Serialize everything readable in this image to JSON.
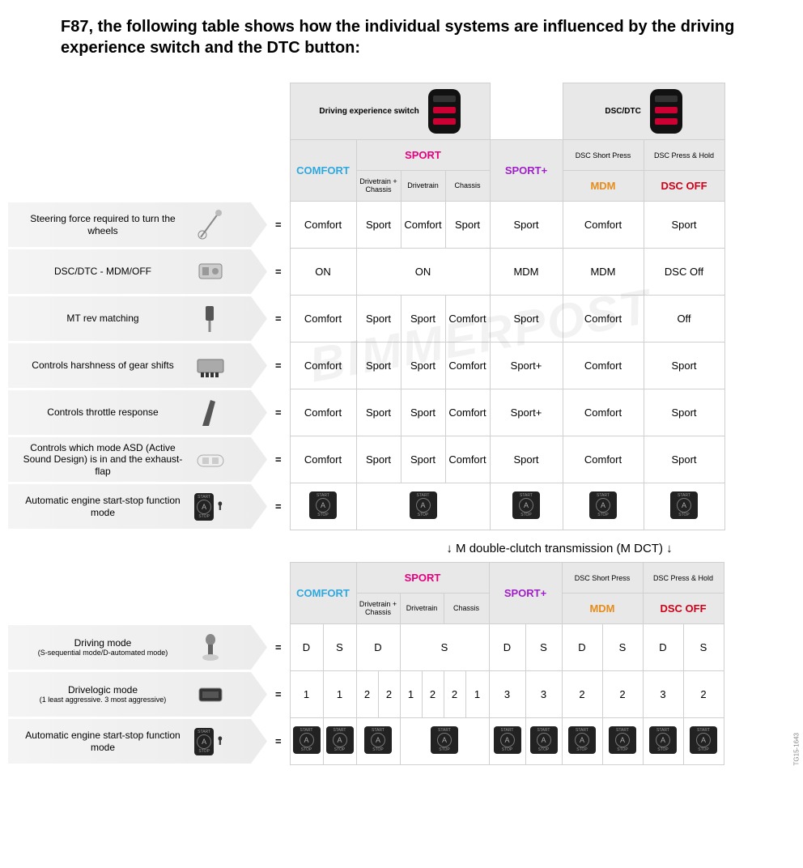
{
  "title": "F87, the following table shows how the individual systems are influenced by the driving experience switch and the DTC button:",
  "header": {
    "driving_switch": "Driving experience switch",
    "dsc_dtc": "DSC/DTC",
    "comfort": "COMFORT",
    "sport": "SPORT",
    "sportplus": "SPORT+",
    "dsc_short": "DSC Short Press",
    "dsc_hold": "DSC Press & Hold",
    "mdm": "MDM",
    "dscoff": "DSC OFF",
    "sub_drivetrain_chassis": "Drivetrain + Chassis",
    "sub_drivetrain": "Drivetrain",
    "sub_chassis": "Chassis"
  },
  "rows1": [
    {
      "label": "Steering force required to turn the wheels",
      "icon": "steering",
      "cells": [
        "Comfort",
        "Sport",
        "Comfort",
        "Sport",
        "Sport",
        "Comfort",
        "Sport"
      ]
    },
    {
      "label": "DSC/DTC - MDM/OFF",
      "icon": "dsc",
      "cells": [
        "ON",
        "ON",
        "",
        "",
        "MDM",
        "MDM",
        "DSC Off"
      ],
      "merge_sport": true
    },
    {
      "label": "MT rev matching",
      "icon": "pedal",
      "cells": [
        "Comfort",
        "Sport",
        "Sport",
        "Comfort",
        "Sport",
        "Comfort",
        "Off"
      ]
    },
    {
      "label": "Controls harshness of gear shifts",
      "icon": "ecu",
      "cells": [
        "Comfort",
        "Sport",
        "Sport",
        "Comfort",
        "Sport+",
        "Comfort",
        "Sport"
      ]
    },
    {
      "label": "Controls throttle response",
      "icon": "throttle",
      "cells": [
        "Comfort",
        "Sport",
        "Sport",
        "Comfort",
        "Sport+",
        "Comfort",
        "Sport"
      ]
    },
    {
      "label": "Controls which mode ASD (Active Sound Design) is in and the exhaust-flap",
      "icon": "car",
      "cells": [
        "Comfort",
        "Sport",
        "Sport",
        "Comfort",
        "Sport",
        "Comfort",
        "Sport"
      ]
    },
    {
      "label": "Automatic engine start-stop function mode",
      "icon": "startstop",
      "cells": [
        "[ss]",
        "[ss]",
        "",
        "",
        "[ss]",
        "[ss]",
        "[ss]"
      ],
      "merge_sport": true
    }
  ],
  "divider": "↓ M double-clutch transmission (M DCT) ↓",
  "rows2": [
    {
      "label": "Driving mode",
      "sub": "(S-sequential mode/D-automated mode)",
      "icon": "shifter",
      "cells": [
        "D",
        "S",
        "D",
        "",
        "S",
        "",
        "D",
        "S",
        "D",
        "S",
        "D",
        "S"
      ],
      "merge_pairs": [
        2,
        4
      ]
    },
    {
      "label": "Drivelogic mode",
      "sub": "(1 least aggressive. 3 most aggressive)",
      "icon": "panel",
      "cells": [
        "1",
        "1",
        "2",
        "2",
        "1",
        "2",
        "2",
        "1",
        "3",
        "3",
        "2",
        "2",
        "3",
        "2"
      ]
    },
    {
      "label": "Automatic engine start-stop function mode",
      "icon": "startstop",
      "cells": [
        "[ss]",
        "[ss]",
        "[ss]",
        "",
        "[ss]",
        "",
        "[ss]",
        "[ss]",
        "[ss]",
        "[ss]",
        "[ss]",
        "[ss]"
      ],
      "merge_pairs": [
        2,
        4
      ]
    }
  ],
  "watermark": "BIMMERPOST",
  "sidecode": "TG15-1643",
  "colors": {
    "comfort": "#2fa8e0",
    "sport": "#e6007e",
    "sportplus": "#a020c8",
    "mdm": "#e88c1a",
    "dscoff": "#d00018"
  },
  "col_widths": {
    "table1": {
      "comfort": 82,
      "sport_sub": 55,
      "sportplus": 90,
      "mdm": 100,
      "dscoff": 100
    },
    "table2": {
      "half": 41,
      "sport_q": 41
    }
  }
}
